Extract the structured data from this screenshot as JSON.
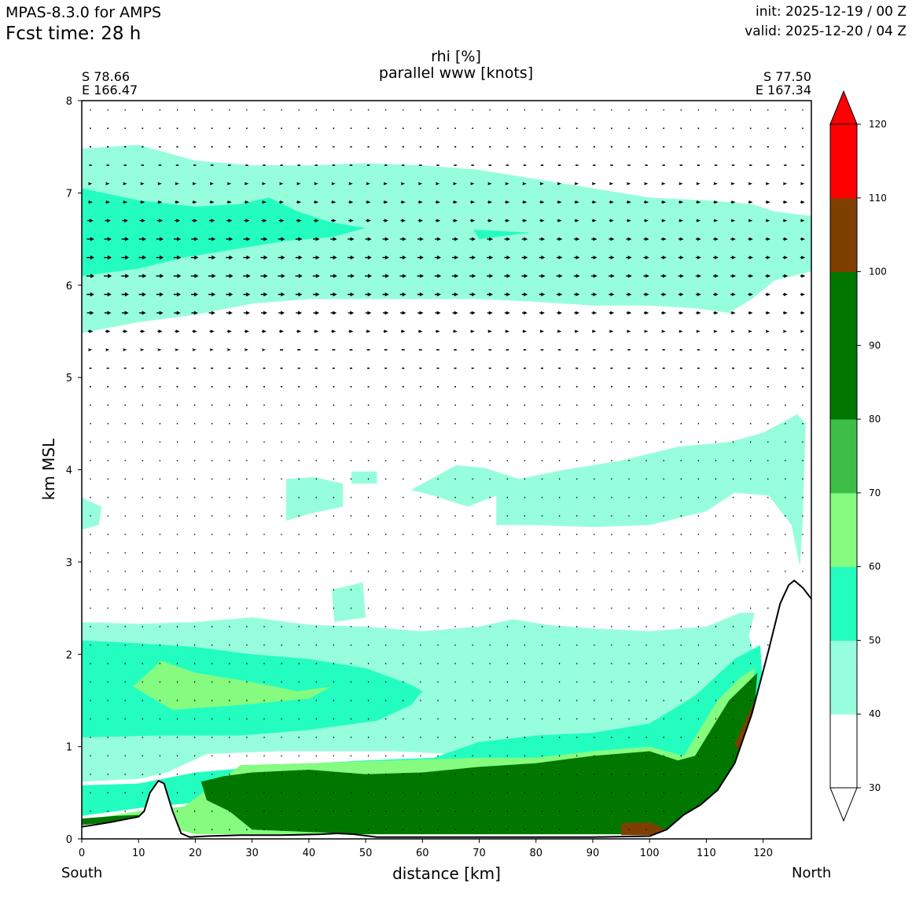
{
  "header": {
    "model": "MPAS-8.3.0 for AMPS",
    "fcst_time": "Fcst time:   28 h",
    "init": "init: 2025-12-19 / 00 Z",
    "valid": "valid: 2025-12-20 / 04 Z"
  },
  "section": {
    "start_lat": "S 78.66",
    "start_lon": "E 166.47",
    "end_lat": "S 77.50",
    "end_lon": "E 167.34",
    "left_dir": "South",
    "right_dir": "North"
  },
  "colors": {
    "rhi_levels": [
      {
        "from": 30,
        "to": 40,
        "color": "#ffffff"
      },
      {
        "from": 40,
        "to": 50,
        "color": "#97fedd"
      },
      {
        "from": 50,
        "to": 60,
        "color": "#23fec0"
      },
      {
        "from": 60,
        "to": 70,
        "color": "#85fb80"
      },
      {
        "from": 70,
        "to": 80,
        "color": "#3dbe46"
      },
      {
        "from": 80,
        "to": 100,
        "color": "#007800"
      },
      {
        "from": 100,
        "to": 110,
        "color": "#7f3f00"
      },
      {
        "from": 110,
        "to": 120,
        "color": "#ff0000"
      }
    ]
  },
  "chart_data": {
    "type": "contour_cross_section",
    "title": "rhi [%]",
    "subtitle": "parallel www [knots]",
    "xlabel": "distance [km]",
    "ylabel": "km MSL",
    "xlim": [
      0,
      128.5
    ],
    "ylim": [
      0,
      8
    ],
    "xticks": [
      0,
      10,
      20,
      30,
      40,
      50,
      60,
      70,
      80,
      90,
      100,
      110,
      120
    ],
    "yticks": [
      0,
      1,
      2,
      3,
      4,
      5,
      6,
      7,
      8
    ],
    "colorbar": {
      "ticks": [
        30,
        40,
        50,
        60,
        70,
        80,
        90,
        100,
        110,
        120
      ],
      "extend": "both"
    },
    "terrain": [
      [
        0,
        0.13
      ],
      [
        5,
        0.18
      ],
      [
        10,
        0.24
      ],
      [
        11,
        0.3
      ],
      [
        12,
        0.5
      ],
      [
        13.5,
        0.63
      ],
      [
        14.5,
        0.6
      ],
      [
        16,
        0.3
      ],
      [
        17.5,
        0.06
      ],
      [
        19,
        0.02
      ],
      [
        22,
        0.03
      ],
      [
        28,
        0.04
      ],
      [
        35,
        0.04
      ],
      [
        42,
        0.05
      ],
      [
        45,
        0.06
      ],
      [
        48,
        0.05
      ],
      [
        52,
        0.02
      ],
      [
        60,
        0.02
      ],
      [
        70,
        0.02
      ],
      [
        80,
        0.02
      ],
      [
        90,
        0.02
      ],
      [
        100,
        0.03
      ],
      [
        103,
        0.1
      ],
      [
        106,
        0.26
      ],
      [
        109,
        0.37
      ],
      [
        112,
        0.53
      ],
      [
        115,
        0.82
      ],
      [
        118,
        1.35
      ],
      [
        121,
        2.05
      ],
      [
        123,
        2.55
      ],
      [
        124.5,
        2.75
      ],
      [
        125.5,
        2.8
      ],
      [
        127,
        2.72
      ],
      [
        128.5,
        2.6
      ]
    ],
    "rhi_regions": [
      {
        "level": 40,
        "polygon": [
          [
            0,
            7.48
          ],
          [
            10,
            7.52
          ],
          [
            20,
            7.35
          ],
          [
            30,
            7.3
          ],
          [
            40,
            7.3
          ],
          [
            50,
            7.32
          ],
          [
            60,
            7.3
          ],
          [
            70,
            7.25
          ],
          [
            80,
            7.15
          ],
          [
            90,
            7.05
          ],
          [
            100,
            6.95
          ],
          [
            110,
            6.92
          ],
          [
            118,
            6.88
          ],
          [
            122,
            6.8
          ],
          [
            128.5,
            6.75
          ],
          [
            128.5,
            6.15
          ],
          [
            122,
            6.05
          ],
          [
            118,
            5.85
          ],
          [
            114,
            5.7
          ],
          [
            108,
            5.75
          ],
          [
            100,
            5.78
          ],
          [
            90,
            5.78
          ],
          [
            80,
            5.82
          ],
          [
            70,
            5.85
          ],
          [
            60,
            5.85
          ],
          [
            50,
            5.85
          ],
          [
            40,
            5.85
          ],
          [
            30,
            5.8
          ],
          [
            20,
            5.68
          ],
          [
            10,
            5.6
          ],
          [
            0,
            5.48
          ]
        ]
      },
      {
        "level": 50,
        "polygon": [
          [
            0,
            7.05
          ],
          [
            10,
            6.92
          ],
          [
            20,
            6.85
          ],
          [
            28,
            6.88
          ],
          [
            33,
            6.95
          ],
          [
            38,
            6.8
          ],
          [
            44,
            6.68
          ],
          [
            50,
            6.62
          ],
          [
            44,
            6.52
          ],
          [
            36,
            6.48
          ],
          [
            28,
            6.4
          ],
          [
            18,
            6.3
          ],
          [
            10,
            6.18
          ],
          [
            0,
            6.1
          ]
        ]
      },
      {
        "level": 50,
        "polygon": [
          [
            69,
            6.6
          ],
          [
            79,
            6.57
          ],
          [
            70,
            6.5
          ]
        ]
      },
      {
        "level": 40,
        "polygon": [
          [
            0,
            3.7
          ],
          [
            3.5,
            3.6
          ],
          [
            3,
            3.4
          ],
          [
            0,
            3.35
          ]
        ]
      },
      {
        "level": 40,
        "polygon": [
          [
            36,
            3.9
          ],
          [
            41,
            3.92
          ],
          [
            46,
            3.85
          ],
          [
            46,
            3.6
          ],
          [
            40,
            3.52
          ],
          [
            36,
            3.45
          ]
        ]
      },
      {
        "level": 40,
        "polygon": [
          [
            47.5,
            3.98
          ],
          [
            52,
            3.98
          ],
          [
            52,
            3.85
          ],
          [
            47.5,
            3.85
          ]
        ]
      },
      {
        "level": 40,
        "polygon": [
          [
            60,
            3.85
          ],
          [
            66,
            4.05
          ],
          [
            71,
            4.02
          ],
          [
            77,
            3.9
          ],
          [
            85,
            4.0
          ],
          [
            95,
            4.1
          ],
          [
            105,
            4.25
          ],
          [
            114,
            4.3
          ],
          [
            120,
            4.4
          ],
          [
            126,
            4.6
          ],
          [
            127.5,
            4.5
          ],
          [
            127,
            3.5
          ],
          [
            126.5,
            2.95
          ],
          [
            125,
            3.4
          ],
          [
            121,
            3.72
          ],
          [
            115,
            3.75
          ],
          [
            110,
            3.55
          ],
          [
            100,
            3.4
          ],
          [
            90,
            3.38
          ],
          [
            80,
            3.4
          ],
          [
            73,
            3.4
          ],
          [
            73,
            3.72
          ],
          [
            68,
            3.6
          ],
          [
            62,
            3.72
          ],
          [
            58,
            3.78
          ]
        ]
      },
      {
        "level": 40,
        "polygon": [
          [
            44,
            2.7
          ],
          [
            49.5,
            2.78
          ],
          [
            50,
            2.4
          ],
          [
            44.5,
            2.35
          ]
        ]
      },
      {
        "level": 40,
        "polygon": [
          [
            0,
            2.35
          ],
          [
            10,
            2.33
          ],
          [
            20,
            2.35
          ],
          [
            30,
            2.4
          ],
          [
            40,
            2.32
          ],
          [
            50,
            2.3
          ],
          [
            60,
            2.25
          ],
          [
            70,
            2.3
          ],
          [
            76,
            2.38
          ],
          [
            82,
            2.32
          ],
          [
            90,
            2.28
          ],
          [
            100,
            2.25
          ],
          [
            110,
            2.3
          ],
          [
            116,
            2.45
          ],
          [
            118.5,
            2.45
          ],
          [
            117.5,
            2.2
          ],
          [
            119,
            1.9
          ],
          [
            114,
            1.7
          ],
          [
            105,
            1.35
          ],
          [
            95,
            1.1
          ],
          [
            85,
            1.02
          ],
          [
            75,
            0.98
          ],
          [
            65,
            0.92
          ],
          [
            55,
            0.95
          ],
          [
            45,
            0.95
          ],
          [
            35,
            0.95
          ],
          [
            22,
            0.92
          ],
          [
            15,
            0.72
          ],
          [
            10,
            0.65
          ],
          [
            0,
            0.62
          ]
        ]
      },
      {
        "level": 50,
        "polygon": [
          [
            0,
            2.15
          ],
          [
            10,
            2.12
          ],
          [
            20,
            2.08
          ],
          [
            30,
            2.0
          ],
          [
            40,
            1.95
          ],
          [
            50,
            1.85
          ],
          [
            58,
            1.67
          ],
          [
            60,
            1.6
          ],
          [
            58,
            1.45
          ],
          [
            52,
            1.28
          ],
          [
            40,
            1.18
          ],
          [
            28,
            1.12
          ],
          [
            14,
            1.12
          ],
          [
            0,
            1.1
          ]
        ]
      },
      {
        "level": 60,
        "polygon": [
          [
            9,
            1.65
          ],
          [
            14,
            1.93
          ],
          [
            20,
            1.8
          ],
          [
            30,
            1.7
          ],
          [
            38,
            1.6
          ],
          [
            44,
            1.65
          ],
          [
            40,
            1.52
          ],
          [
            28,
            1.45
          ],
          [
            16,
            1.4
          ]
        ]
      },
      {
        "level": 50,
        "polygon": [
          [
            0,
            0.58
          ],
          [
            10,
            0.6
          ],
          [
            20,
            0.72
          ],
          [
            35,
            0.8
          ],
          [
            50,
            0.85
          ],
          [
            62,
            0.88
          ],
          [
            70,
            1.05
          ],
          [
            80,
            1.12
          ],
          [
            90,
            1.15
          ],
          [
            100,
            1.25
          ],
          [
            108,
            1.55
          ],
          [
            115,
            1.95
          ],
          [
            119.5,
            2.1
          ],
          [
            120,
            1.6
          ],
          [
            115,
            1.3
          ],
          [
            108,
            0.55
          ],
          [
            100,
            0.4
          ],
          [
            90,
            0.45
          ],
          [
            80,
            0.5
          ],
          [
            60,
            0.45
          ],
          [
            40,
            0.45
          ],
          [
            22,
            0.4
          ],
          [
            12,
            0.35
          ],
          [
            0,
            0.25
          ]
        ]
      },
      {
        "level": 60,
        "polygon": [
          [
            0,
            0.2
          ],
          [
            10,
            0.3
          ],
          [
            18,
            0.35
          ],
          [
            28,
            0.8
          ],
          [
            40,
            0.82
          ],
          [
            55,
            0.85
          ],
          [
            70,
            0.88
          ],
          [
            80,
            0.88
          ],
          [
            90,
            0.95
          ],
          [
            100,
            1.0
          ],
          [
            106,
            0.9
          ],
          [
            108,
            1.1
          ],
          [
            112,
            1.5
          ],
          [
            116,
            1.75
          ],
          [
            118.5,
            1.85
          ],
          [
            115,
            0.5
          ],
          [
            110,
            0.4
          ],
          [
            100,
            0.05
          ],
          [
            90,
            0.05
          ],
          [
            70,
            0.05
          ],
          [
            50,
            0.05
          ],
          [
            30,
            0.05
          ],
          [
            20,
            0.05
          ],
          [
            17,
            0.1
          ],
          [
            12,
            0.25
          ]
        ]
      },
      {
        "level": 80,
        "polygon": [
          [
            21,
            0.62
          ],
          [
            25,
            0.68
          ],
          [
            30,
            0.72
          ],
          [
            40,
            0.75
          ],
          [
            50,
            0.7
          ],
          [
            60,
            0.72
          ],
          [
            70,
            0.78
          ],
          [
            80,
            0.82
          ],
          [
            90,
            0.9
          ],
          [
            100,
            0.95
          ],
          [
            105,
            0.85
          ],
          [
            108,
            0.9
          ],
          [
            111,
            1.2
          ],
          [
            114,
            1.5
          ],
          [
            119,
            1.8
          ],
          [
            117,
            0.4
          ],
          [
            110,
            0.3
          ],
          [
            103,
            0.05
          ],
          [
            90,
            0.05
          ],
          [
            70,
            0.05
          ],
          [
            50,
            0.05
          ],
          [
            30,
            0.1
          ],
          [
            26,
            0.3
          ],
          [
            22,
            0.42
          ]
        ]
      },
      {
        "level": 100,
        "polygon": [
          [
            95,
            0.17
          ],
          [
            100,
            0.18
          ],
          [
            103,
            0.1
          ],
          [
            101,
            0.04
          ],
          [
            95,
            0.04
          ]
        ]
      },
      {
        "level": 100,
        "polygon": [
          [
            115,
            1.02
          ],
          [
            118.5,
            1.5
          ],
          [
            119.5,
            1.35
          ],
          [
            116.5,
            0.9
          ]
        ]
      },
      {
        "level": 80,
        "polygon": [
          [
            0,
            0.22
          ],
          [
            6,
            0.25
          ],
          [
            10,
            0.26
          ],
          [
            10,
            0.2
          ],
          [
            5,
            0.18
          ],
          [
            0,
            0.15
          ]
        ]
      }
    ],
    "wind": {
      "nx": 42,
      "ny": 40,
      "max_knots": 30,
      "profile": [
        [
          0,
          0.5
        ],
        [
          1,
          0.7
        ],
        [
          2,
          1.0
        ],
        [
          3,
          1.2
        ],
        [
          4,
          1.4
        ],
        [
          4.8,
          2
        ],
        [
          5,
          3
        ],
        [
          5.3,
          6
        ],
        [
          5.7,
          12
        ],
        [
          6.1,
          14
        ],
        [
          6.5,
          13
        ],
        [
          6.9,
          8
        ],
        [
          7.5,
          3
        ],
        [
          8,
          1
        ]
      ]
    }
  }
}
